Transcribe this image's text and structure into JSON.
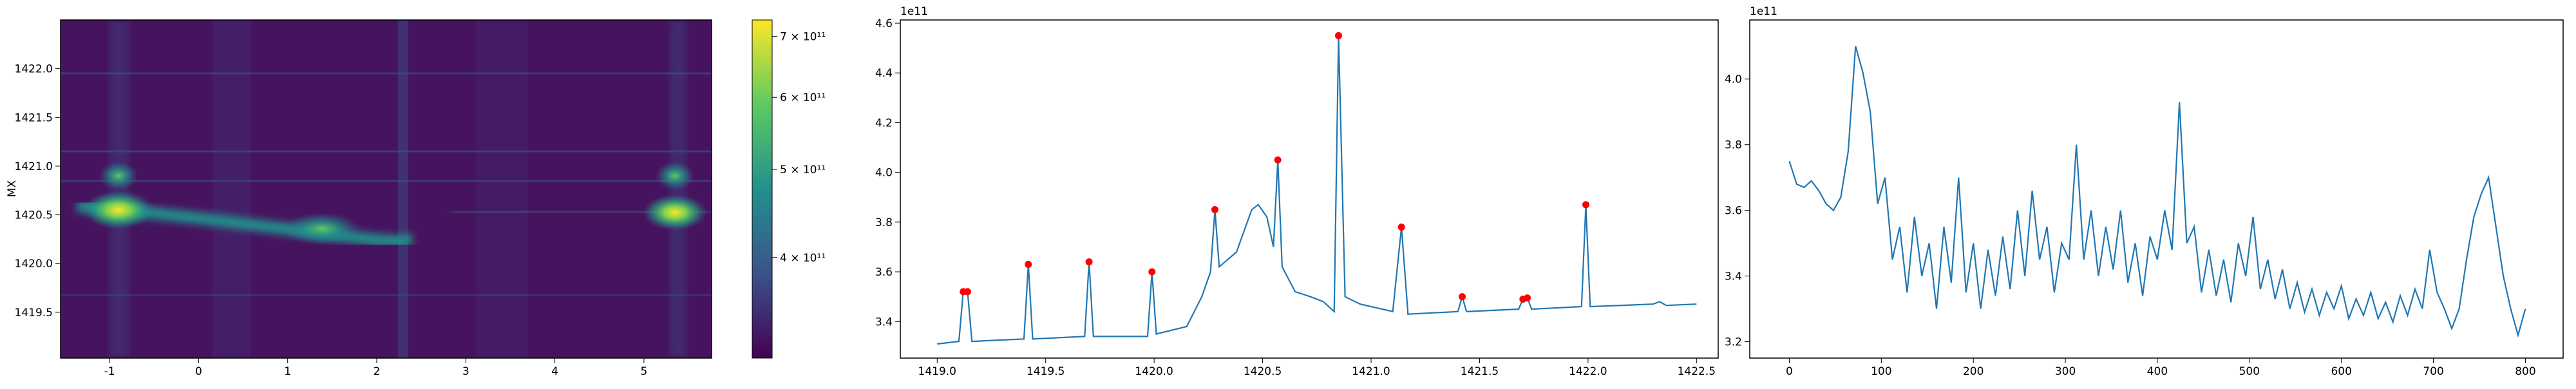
{
  "chart_data": [
    {
      "type": "heatmap",
      "ylabel": "MX",
      "xlim": [
        -1.55,
        5.76
      ],
      "ylim": [
        1419.03,
        1422.5
      ],
      "xticks": [
        -1,
        0,
        1,
        2,
        3,
        4,
        5
      ],
      "yticks": [
        1419.5,
        {
          "value": 1420,
          "label": "1420.0"
        },
        1420.5,
        {
          "value": 1421,
          "label": "1421.0"
        },
        1421.5,
        {
          "value": 1422,
          "label": "1422.0"
        }
      ],
      "colorbar": {
        "log": true,
        "clim": [
          310000000000,
          730000000000
        ],
        "ticks": [
          {
            "value": 400000000000,
            "label": "4 × 10¹¹"
          },
          {
            "value": 500000000000,
            "label": "5 × 10¹¹"
          },
          {
            "value": 600000000000,
            "label": "6 × 10¹¹"
          },
          {
            "value": 700000000000,
            "label": "7 × 10¹¹"
          }
        ]
      }
    },
    {
      "type": "line",
      "offset_text": "1e11",
      "xlim": [
        1418.83,
        1422.6
      ],
      "ylim": [
        3.253,
        4.613
      ],
      "xticks": [
        {
          "value": 1419,
          "label": "1419.0"
        },
        1419.5,
        {
          "value": 1420,
          "label": "1420.0"
        },
        1420.5,
        {
          "value": 1421,
          "label": "1421.0"
        },
        1421.5,
        {
          "value": 1422,
          "label": "1422.0"
        },
        1422.5
      ],
      "yticks": [
        3.4,
        3.6,
        3.8,
        {
          "value": 4,
          "label": "4.0"
        },
        4.2,
        4.4,
        4.6
      ],
      "series": [
        {
          "kind": "line",
          "color": "#1f77b4",
          "x": [
            1419.0,
            1419.1,
            1419.12,
            1419.14,
            1419.16,
            1419.4,
            1419.42,
            1419.44,
            1419.68,
            1419.7,
            1419.72,
            1419.97,
            1419.99,
            1420.01,
            1420.15,
            1420.22,
            1420.26,
            1420.28,
            1420.3,
            1420.38,
            1420.45,
            1420.48,
            1420.52,
            1420.55,
            1420.57,
            1420.59,
            1420.65,
            1420.72,
            1420.78,
            1420.83,
            1420.85,
            1420.88,
            1420.95,
            1421.1,
            1421.14,
            1421.17,
            1421.4,
            1421.42,
            1421.44,
            1421.68,
            1421.7,
            1421.72,
            1421.74,
            1421.97,
            1421.99,
            1422.01,
            1422.3,
            1422.33,
            1422.36,
            1422.5
          ],
          "values": [
            3.31,
            3.32,
            3.52,
            3.52,
            3.32,
            3.33,
            3.63,
            3.33,
            3.34,
            3.64,
            3.34,
            3.34,
            3.6,
            3.35,
            3.38,
            3.5,
            3.6,
            3.85,
            3.62,
            3.68,
            3.85,
            3.87,
            3.82,
            3.7,
            4.05,
            3.62,
            3.52,
            3.5,
            3.48,
            3.44,
            4.55,
            3.5,
            3.47,
            3.44,
            3.78,
            3.43,
            3.44,
            3.5,
            3.44,
            3.45,
            3.49,
            3.495,
            3.45,
            3.46,
            3.87,
            3.46,
            3.47,
            3.48,
            3.465,
            3.47
          ]
        },
        {
          "kind": "scatter",
          "color": "#ff0000",
          "x": [
            1419.12,
            1419.14,
            1419.42,
            1419.7,
            1419.99,
            1420.28,
            1420.57,
            1420.85,
            1421.14,
            1421.42,
            1421.7,
            1421.72,
            1421.99
          ],
          "values": [
            3.52,
            3.52,
            3.63,
            3.64,
            3.6,
            3.85,
            4.05,
            4.55,
            3.78,
            3.5,
            3.49,
            3.495,
            3.87
          ]
        }
      ]
    },
    {
      "type": "line",
      "offset_text": "1e11",
      "xlim": [
        -43,
        841
      ],
      "ylim": [
        3.15,
        4.18
      ],
      "xticks": [
        0,
        100,
        200,
        300,
        400,
        500,
        600,
        700,
        800
      ],
      "yticks": [
        3.2,
        3.4,
        3.6,
        3.8,
        {
          "value": 4,
          "label": "4.0"
        }
      ],
      "series": [
        {
          "kind": "line",
          "color": "#1f77b4",
          "x": [
            0,
            8,
            16,
            24,
            32,
            40,
            48,
            56,
            64,
            72,
            80,
            88,
            96,
            104,
            112,
            120,
            128,
            136,
            144,
            152,
            160,
            168,
            176,
            184,
            192,
            200,
            208,
            216,
            224,
            232,
            240,
            248,
            256,
            264,
            272,
            280,
            288,
            296,
            304,
            312,
            320,
            328,
            336,
            344,
            352,
            360,
            368,
            376,
            384,
            392,
            400,
            408,
            416,
            424,
            432,
            440,
            448,
            456,
            464,
            472,
            480,
            488,
            496,
            504,
            512,
            520,
            528,
            536,
            544,
            552,
            560,
            568,
            576,
            584,
            592,
            600,
            608,
            616,
            624,
            632,
            640,
            648,
            656,
            664,
            672,
            680,
            688,
            696,
            704,
            712,
            720,
            728,
            736,
            744,
            752,
            760,
            768,
            776,
            784,
            792,
            800
          ],
          "values": [
            3.75,
            3.68,
            3.67,
            3.69,
            3.66,
            3.62,
            3.6,
            3.64,
            3.78,
            4.1,
            4.02,
            3.9,
            3.62,
            3.7,
            3.45,
            3.55,
            3.35,
            3.58,
            3.4,
            3.5,
            3.3,
            3.55,
            3.38,
            3.7,
            3.35,
            3.5,
            3.3,
            3.48,
            3.34,
            3.52,
            3.36,
            3.6,
            3.4,
            3.66,
            3.45,
            3.55,
            3.35,
            3.5,
            3.45,
            3.8,
            3.45,
            3.6,
            3.4,
            3.55,
            3.42,
            3.6,
            3.38,
            3.5,
            3.34,
            3.52,
            3.45,
            3.6,
            3.48,
            3.93,
            3.5,
            3.55,
            3.35,
            3.48,
            3.34,
            3.45,
            3.32,
            3.5,
            3.4,
            3.58,
            3.36,
            3.45,
            3.33,
            3.42,
            3.3,
            3.38,
            3.29,
            3.36,
            3.28,
            3.35,
            3.3,
            3.37,
            3.27,
            3.33,
            3.28,
            3.35,
            3.27,
            3.32,
            3.26,
            3.34,
            3.28,
            3.36,
            3.3,
            3.48,
            3.35,
            3.3,
            3.24,
            3.3,
            3.45,
            3.58,
            3.65,
            3.7,
            3.55,
            3.4,
            3.3,
            3.22,
            3.3
          ]
        }
      ]
    }
  ]
}
